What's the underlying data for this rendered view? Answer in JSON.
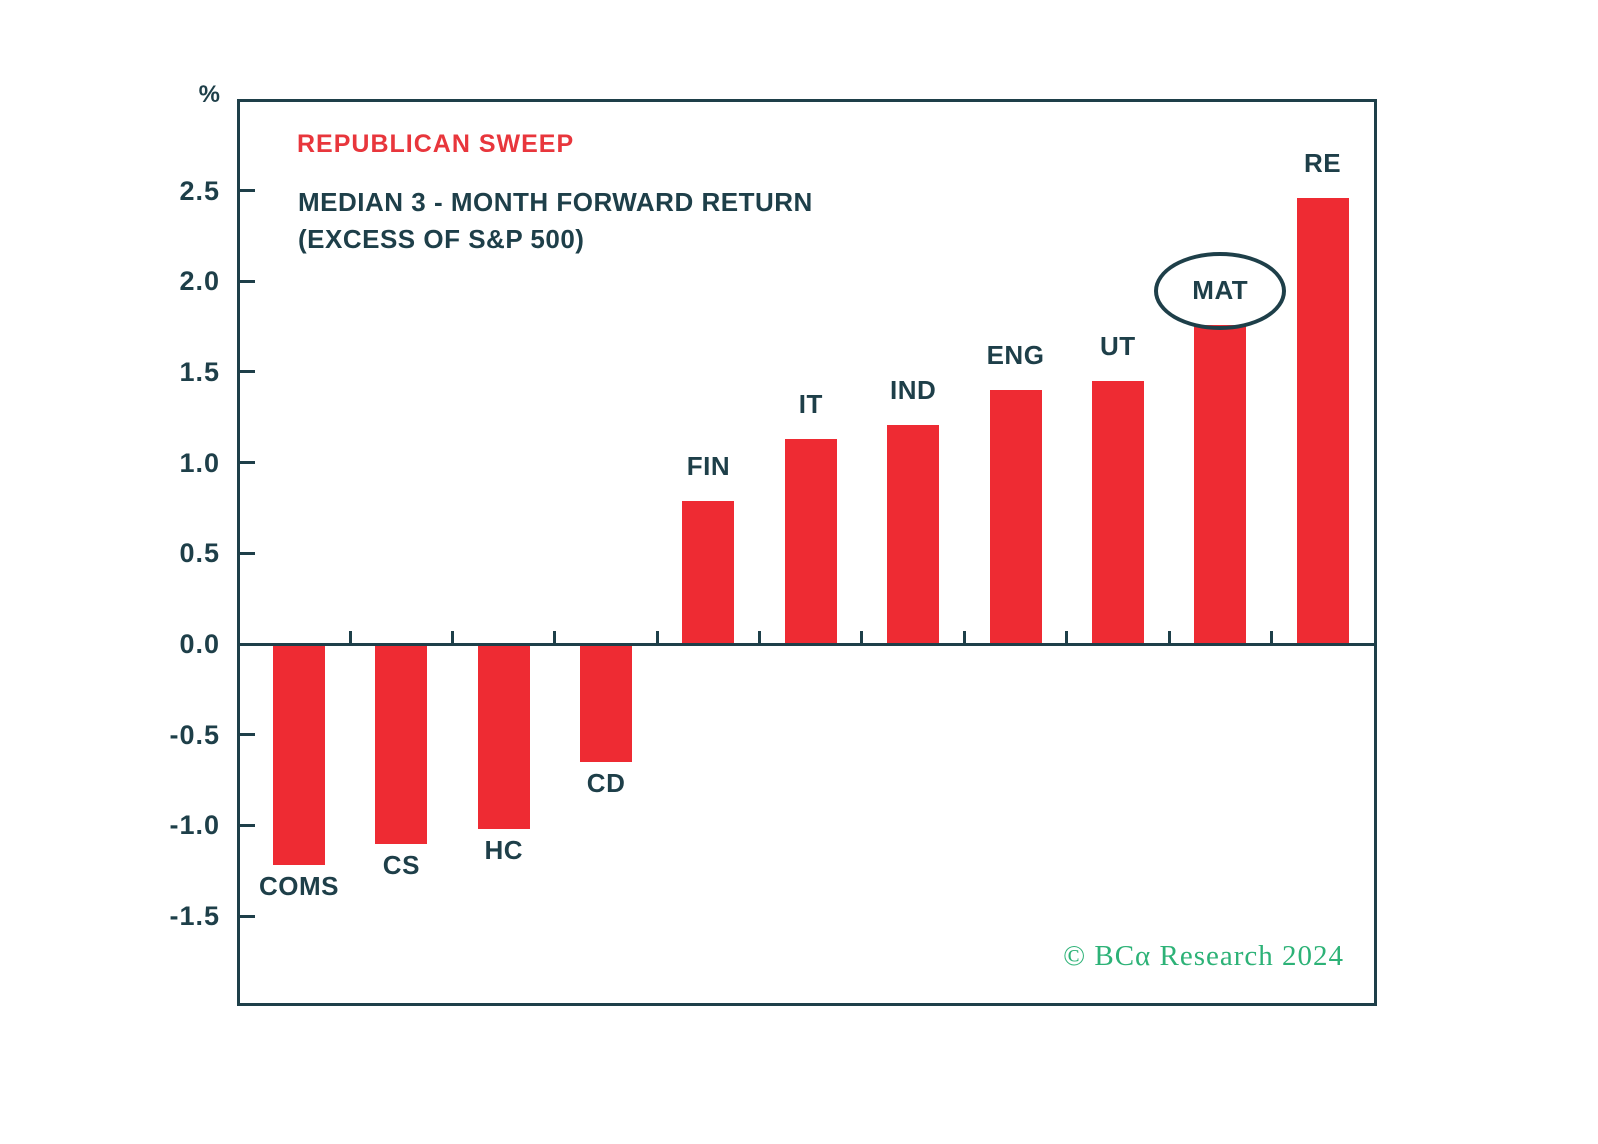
{
  "header": {
    "title": "REPUBLICAN SWEEP",
    "subtitle_line1": "MEDIAN 3 - MONTH FORWARD RETURN",
    "subtitle_line2": "(EXCESS OF S&P 500)"
  },
  "footer": {
    "credit": "© BCα Research 2024"
  },
  "colors": {
    "bar": "#ee2b33",
    "title_red": "#e8363c",
    "ink": "#1e3f49",
    "credit_green": "#2db277",
    "background": "#ffffff"
  },
  "chart_data": {
    "type": "bar",
    "title": "REPUBLICAN SWEEP",
    "subtitle": "MEDIAN 3 - MONTH FORWARD RETURN (EXCESS OF S&P 500)",
    "ylabel": "%",
    "xlabel": "",
    "ylim": [
      -2.0,
      3.0
    ],
    "grid": false,
    "legend_position": "none",
    "yticks": [
      2.5,
      2.0,
      1.5,
      1.0,
      0.5,
      0.0,
      -0.5,
      -1.0,
      -1.5
    ],
    "ytick_labels": [
      "2.5",
      "2.0",
      "1.5",
      "1.0",
      "0.5",
      "0.0",
      "-0.5",
      "-1.0",
      "-1.5"
    ],
    "categories": [
      "COMS",
      "CS",
      "HC",
      "CD",
      "FIN",
      "IT",
      "IND",
      "ENG",
      "UT",
      "MAT",
      "RE"
    ],
    "values": [
      -1.22,
      -1.1,
      -1.02,
      -0.65,
      0.79,
      1.13,
      1.21,
      1.4,
      1.45,
      1.76,
      2.46
    ],
    "bar_color": "#ee2b33",
    "annotation": {
      "category": "MAT",
      "shape": "ellipse"
    }
  }
}
